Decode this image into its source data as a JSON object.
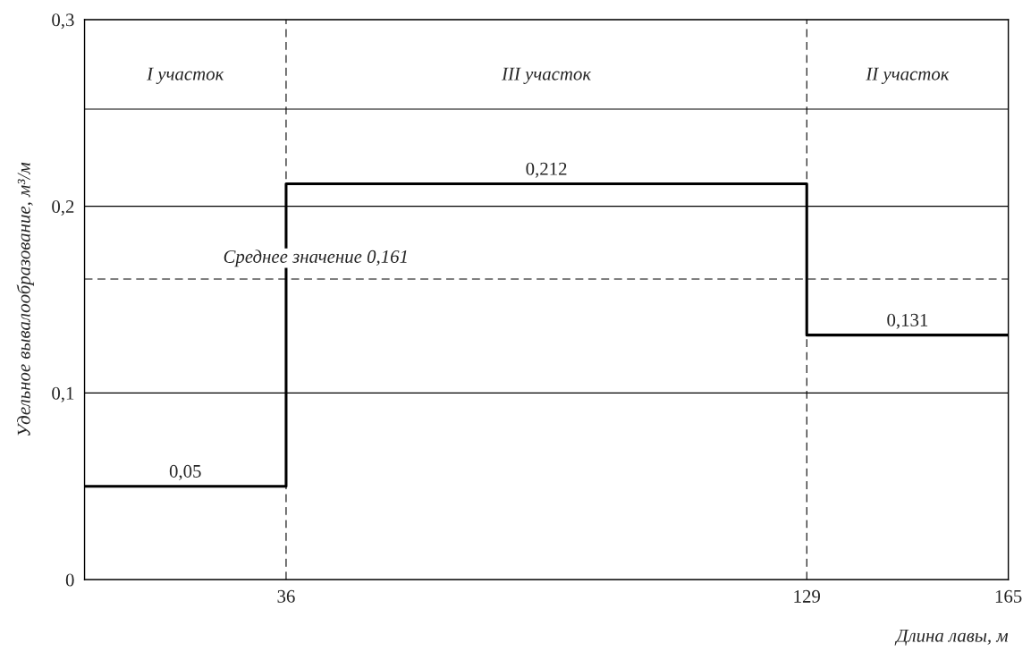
{
  "chart_data": {
    "type": "step",
    "xlabel": "Длина лавы, м",
    "ylabel": "Удельное вывалообразование, м³/м",
    "x": [
      0,
      18,
      36,
      82.5,
      129,
      147,
      165
    ],
    "values": [
      0.05,
      0.05,
      0.212,
      0.212,
      0.131,
      0.131,
      0.131
    ],
    "value_labels": [
      null,
      "0,05",
      null,
      "0,212",
      null,
      "0,131",
      null
    ],
    "color": "#000000",
    "xlim": [
      0,
      165
    ],
    "xticks": [
      36,
      129,
      165
    ],
    "ylim": [
      0,
      0.3
    ],
    "yticks": [
      0,
      {
        "value": 0.1,
        "label": "0,1"
      },
      {
        "value": 0.2,
        "label": "0,2"
      },
      {
        "value": 0.3,
        "label": "0,3"
      }
    ],
    "grid": "y",
    "ref_lines": [
      {
        "axis": "x",
        "value": 36,
        "line_style": "dashed"
      },
      {
        "axis": "x",
        "value": 129,
        "line_style": "dashed"
      },
      {
        "axis": "y",
        "value": 0.161,
        "line_style": "dashed",
        "label": "Среднее значение 0,161"
      },
      {
        "axis": "y",
        "value": 0.252,
        "line_style": "solid"
      }
    ],
    "annotations": [
      "I участок",
      "III участок",
      "II участок"
    ]
  }
}
